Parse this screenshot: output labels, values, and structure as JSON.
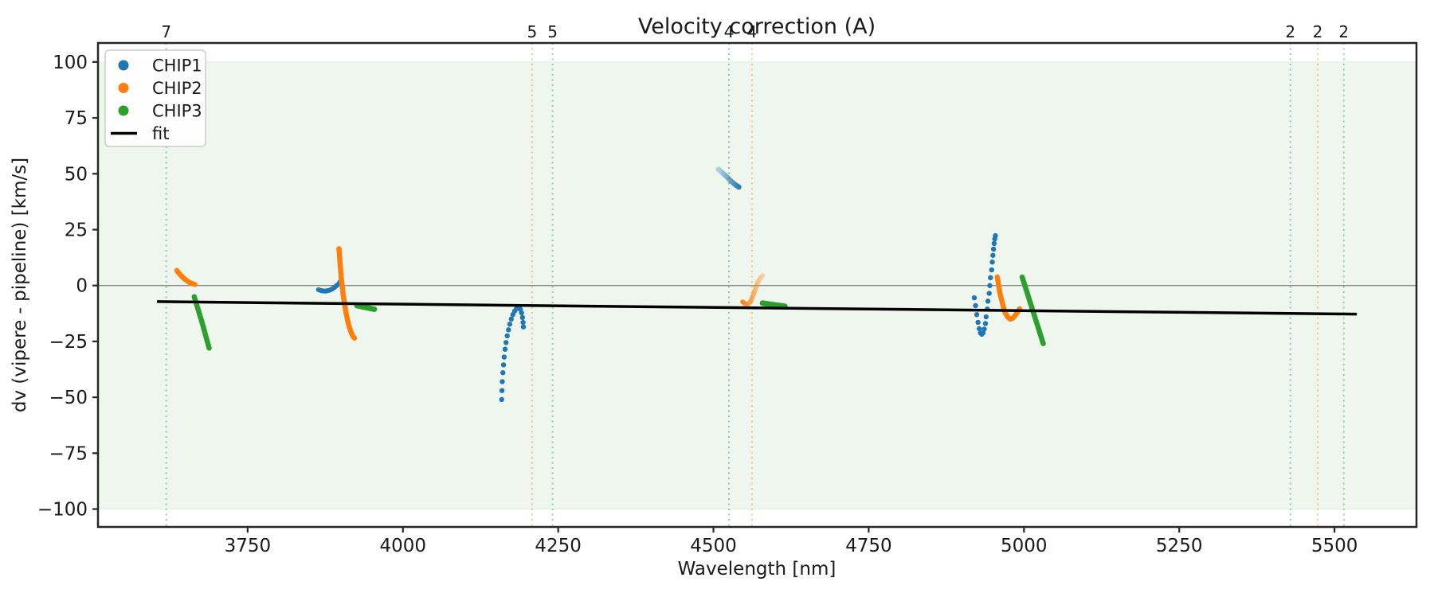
{
  "title": "Velocity correction (A)",
  "chart_data": {
    "type": "scatter",
    "title": "Velocity correction (A)",
    "xlabel": "Wavelength [nm]",
    "ylabel": "dv (vipere - pipeline) [km/s]",
    "xlim": [
      3509,
      5632
    ],
    "ylim": [
      -108,
      108.5
    ],
    "xtick_values": [
      3750,
      4000,
      4250,
      4500,
      4750,
      5000,
      5250,
      5500
    ],
    "xtick_labels": [
      "3750",
      "4000",
      "4250",
      "4500",
      "4750",
      "5000",
      "5250",
      "5500"
    ],
    "ytick_values": [
      100,
      75,
      50,
      25,
      0,
      -25,
      -50,
      -75,
      -100
    ],
    "ytick_labels": [
      "100",
      "75",
      "50",
      "25",
      "0",
      "−25",
      "−50",
      "−75",
      "−100"
    ],
    "grid": false,
    "legend_position": "upper-left",
    "colors": {
      "CHIP1": "#1f77b4",
      "CHIP2": "#ff7f0e",
      "CHIP3": "#2ca02c",
      "fit": "#000000",
      "band_fill": "#eff6ee",
      "band_edge": "#e2eee0",
      "zero_line": "#888888",
      "spine": "#262626"
    },
    "band": {
      "ymin": -100,
      "ymax": 100
    },
    "zero_line_y": 0,
    "vlines": [
      {
        "x": 3619,
        "label": "7",
        "series": "CHIP1",
        "color": "#1f77b4"
      },
      {
        "x": 4208,
        "label": "5",
        "series": "CHIP2",
        "color": "#ff7f0e"
      },
      {
        "x": 4241,
        "label": "5",
        "series": "CHIP3",
        "color": "#2ca02c"
      },
      {
        "x": 4525,
        "label": "4",
        "series": "CHIP1",
        "color": "#1f77b4"
      },
      {
        "x": 4562,
        "label": "4",
        "series": "CHIP2",
        "color": "#ff7f0e"
      },
      {
        "x": 5429,
        "label": "2",
        "series": "CHIP1",
        "color": "#1f77b4"
      },
      {
        "x": 5473,
        "label": "2",
        "series": "CHIP2",
        "color": "#ff7f0e"
      },
      {
        "x": 5515,
        "label": "2",
        "series": "CHIP3",
        "color": "#2ca02c"
      }
    ],
    "series": [
      {
        "name": "CHIP1",
        "color": "#1f77b4",
        "clusters": [
          {
            "style": "line",
            "width": 6,
            "points": [
              [
                3864,
                -1.9
              ],
              [
                3870,
                -2.4
              ],
              [
                3876,
                -2.5
              ],
              [
                3882,
                -2.1
              ],
              [
                3888,
                -1.2
              ],
              [
                3893,
                -0.1
              ],
              [
                3897,
                0.9
              ],
              [
                3899,
                1.8
              ]
            ]
          },
          {
            "style": "dots",
            "r": 3.2,
            "points": [
              [
                4159,
                -51
              ],
              [
                4159.5,
                -47
              ],
              [
                4160,
                -43
              ],
              [
                4161,
                -39
              ],
              [
                4162,
                -35.5
              ],
              [
                4163,
                -32
              ],
              [
                4164.5,
                -28.5
              ],
              [
                4166,
                -25.5
              ],
              [
                4168,
                -22.5
              ],
              [
                4170,
                -19.8
              ],
              [
                4172,
                -17.3
              ],
              [
                4174.5,
                -15
              ],
              [
                4177,
                -13
              ],
              [
                4180,
                -11.4
              ],
              [
                4183,
                -10.3
              ],
              [
                4186,
                -10
              ],
              [
                4189,
                -10.6
              ],
              [
                4191,
                -12.2
              ],
              [
                4192.5,
                -14.3
              ],
              [
                4193.5,
                -16.5
              ],
              [
                4194,
                -18.5
              ]
            ]
          },
          {
            "style": "line",
            "width": 6.5,
            "fade": "left",
            "points": [
              [
                4508,
                52
              ],
              [
                4512,
                51
              ],
              [
                4516,
                50
              ],
              [
                4520,
                49
              ],
              [
                4524,
                47.9
              ],
              [
                4528,
                46.8
              ],
              [
                4532,
                45.8
              ],
              [
                4536,
                44.9
              ],
              [
                4541,
                44
              ]
            ]
          },
          {
            "style": "dots",
            "r": 3.2,
            "points": [
              [
                4920,
                -5.5
              ],
              [
                4922,
                -9
              ],
              [
                4924,
                -13
              ],
              [
                4926,
                -16.5
              ],
              [
                4928,
                -19.3
              ],
              [
                4930,
                -21.2
              ],
              [
                4932,
                -21.8
              ],
              [
                4934,
                -21.2
              ],
              [
                4936,
                -19.5
              ],
              [
                4938,
                -17
              ],
              [
                4939,
                -14
              ],
              [
                4941,
                -10.5
              ],
              [
                4942,
                -7
              ],
              [
                4944,
                -3.5
              ],
              [
                4945,
                0
              ],
              [
                4946,
                3.5
              ],
              [
                4948,
                7
              ],
              [
                4949,
                10.5
              ],
              [
                4950,
                13.5
              ],
              [
                4951,
                16.3
              ],
              [
                4952,
                18.8
              ],
              [
                4953,
                20.8
              ],
              [
                4954,
                22.3
              ]
            ]
          }
        ]
      },
      {
        "name": "CHIP2",
        "color": "#ff7f0e",
        "clusters": [
          {
            "style": "line",
            "width": 6.5,
            "points": [
              [
                3636,
                6.7
              ],
              [
                3640,
                5.3
              ],
              [
                3645,
                3.8
              ],
              [
                3650,
                2.6
              ],
              [
                3655,
                1.6
              ],
              [
                3660,
                0.9
              ],
              [
                3665,
                0.5
              ]
            ]
          },
          {
            "style": "line",
            "width": 6.5,
            "points": [
              [
                3897,
                16.5
              ],
              [
                3898,
                13
              ],
              [
                3899,
                9.5
              ],
              [
                3900,
                6
              ],
              [
                3901,
                2.5
              ],
              [
                3902.5,
                -1
              ],
              [
                3904,
                -4.5
              ],
              [
                3906,
                -8
              ],
              [
                3908,
                -11.5
              ],
              [
                3910.5,
                -15
              ],
              [
                3913,
                -18
              ],
              [
                3916,
                -20.5
              ],
              [
                3919,
                -22.5
              ],
              [
                3922,
                -23.5
              ]
            ]
          },
          {
            "style": "line",
            "width": 6,
            "fade": "right",
            "points": [
              [
                4547,
                -7.3
              ],
              [
                4551,
                -8.2
              ],
              [
                4555,
                -8.4
              ],
              [
                4559,
                -7.5
              ],
              [
                4562,
                -5.8
              ],
              [
                4565,
                -3.6
              ],
              [
                4568,
                -1.2
              ],
              [
                4571,
                1.2
              ],
              [
                4575,
                3
              ],
              [
                4579,
                4.4
              ]
            ]
          },
          {
            "style": "line",
            "width": 6.5,
            "points": [
              [
                4957,
                3.8
              ],
              [
                4959,
                0.5
              ],
              [
                4961,
                -3
              ],
              [
                4964,
                -6.5
              ],
              [
                4967,
                -9.8
              ],
              [
                4970,
                -12.3
              ],
              [
                4974,
                -14.2
              ],
              [
                4978,
                -15
              ],
              [
                4982,
                -14.6
              ],
              [
                4986,
                -13.3
              ],
              [
                4990,
                -11.8
              ],
              [
                4993,
                -10.4
              ]
            ]
          }
        ]
      },
      {
        "name": "CHIP3",
        "color": "#2ca02c",
        "clusters": [
          {
            "style": "line",
            "width": 6.5,
            "points": [
              [
                3664,
                -5
              ],
              [
                3670,
                -10.5
              ],
              [
                3676,
                -16
              ],
              [
                3682,
                -22
              ],
              [
                3688,
                -28
              ]
            ]
          },
          {
            "style": "line",
            "width": 7,
            "points": [
              [
                3926,
                -9
              ],
              [
                3940,
                -9.8
              ],
              [
                3954,
                -10.6
              ]
            ]
          },
          {
            "style": "line",
            "width": 7,
            "points": [
              [
                4579,
                -7.9
              ],
              [
                4597,
                -8.6
              ],
              [
                4615,
                -9.3
              ]
            ]
          },
          {
            "style": "line",
            "width": 6.5,
            "points": [
              [
                4997,
                3.8
              ],
              [
                5004,
                -2.2
              ],
              [
                5011,
                -8.4
              ],
              [
                5018,
                -14.6
              ],
              [
                5025,
                -20.6
              ],
              [
                5031,
                -26
              ]
            ]
          }
        ]
      }
    ],
    "fit_line": {
      "name": "fit",
      "color": "#000000",
      "width": 3.5,
      "points": [
        [
          3604,
          -7.2
        ],
        [
          5536,
          -12.8
        ]
      ]
    },
    "legend": [
      {
        "label": "CHIP1",
        "marker": "dot",
        "color": "#1f77b4"
      },
      {
        "label": "CHIP2",
        "marker": "dot",
        "color": "#ff7f0e"
      },
      {
        "label": "CHIP3",
        "marker": "dot",
        "color": "#2ca02c"
      },
      {
        "label": "fit",
        "marker": "line",
        "color": "#000000"
      }
    ]
  }
}
